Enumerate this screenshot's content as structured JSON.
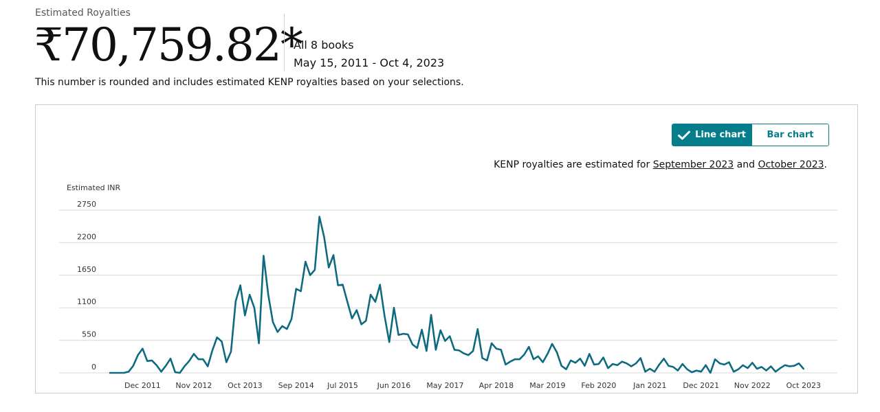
{
  "header": {
    "label": "Estimated Royalties",
    "amount": "₹70,759.82*",
    "scope": "All 8 books",
    "date_range": "May 15, 2011 - Oct 4, 2023",
    "note": "This number is rounded and includes estimated KENP royalties based on your selections."
  },
  "toggle": {
    "line_label": "Line chart",
    "bar_label": "Bar chart",
    "active": "line"
  },
  "kenp_note": {
    "prefix": "KENP royalties are estimated for ",
    "link1": "September 2023",
    "middle": " and ",
    "link2": "October 2023",
    "suffix": "."
  },
  "colors": {
    "accent": "#067d8a",
    "line": "#0e6a80",
    "grid": "#d5d9d9"
  },
  "chart_data": {
    "type": "line",
    "ylabel": "Estimated INR",
    "ylim": [
      0,
      2750
    ],
    "yticks": [
      0,
      550,
      1100,
      1650,
      2200,
      2750
    ],
    "grid": true,
    "x_start": "May 2011",
    "x_tick_labels": [
      "Dec 2011",
      "Nov 2012",
      "Oct 2013",
      "Sep 2014",
      "Jul 2015",
      "Jun 2016",
      "May 2017",
      "Apr 2018",
      "Mar 2019",
      "Feb 2020",
      "Jan 2021",
      "Dec 2021",
      "Nov 2022",
      "Oct 2023"
    ],
    "x_tick_month_index": [
      7,
      18,
      29,
      40,
      50,
      61,
      72,
      83,
      94,
      105,
      116,
      127,
      138,
      149
    ],
    "series": [
      {
        "values": [
          0,
          0,
          0,
          0,
          20,
          120,
          300,
          410,
          200,
          210,
          130,
          20,
          120,
          240,
          10,
          0,
          110,
          200,
          320,
          230,
          230,
          110,
          380,
          600,
          530,
          180,
          360,
          1210,
          1480,
          970,
          1320,
          1100,
          500,
          1980,
          1320,
          860,
          690,
          790,
          740,
          910,
          1420,
          1380,
          1880,
          1650,
          1740,
          2640,
          2300,
          1780,
          1990,
          1480,
          1490,
          1200,
          920,
          1060,
          820,
          880,
          1320,
          1200,
          1490,
          960,
          520,
          1100,
          640,
          660,
          650,
          480,
          420,
          730,
          370,
          980,
          390,
          720,
          540,
          620,
          390,
          380,
          330,
          300,
          370,
          740,
          250,
          210,
          500,
          410,
          390,
          140,
          190,
          230,
          230,
          310,
          440,
          230,
          280,
          180,
          320,
          490,
          350,
          120,
          60,
          210,
          170,
          240,
          120,
          320,
          140,
          150,
          260,
          80,
          150,
          130,
          190,
          160,
          110,
          160,
          250,
          20,
          70,
          20,
          140,
          240,
          120,
          100,
          40,
          150,
          60,
          10,
          40,
          20,
          130,
          0,
          230,
          160,
          140,
          180,
          20,
          60,
          130,
          80,
          170,
          70,
          100,
          40,
          110,
          20,
          80,
          130,
          110,
          120,
          160,
          70
        ]
      }
    ]
  }
}
